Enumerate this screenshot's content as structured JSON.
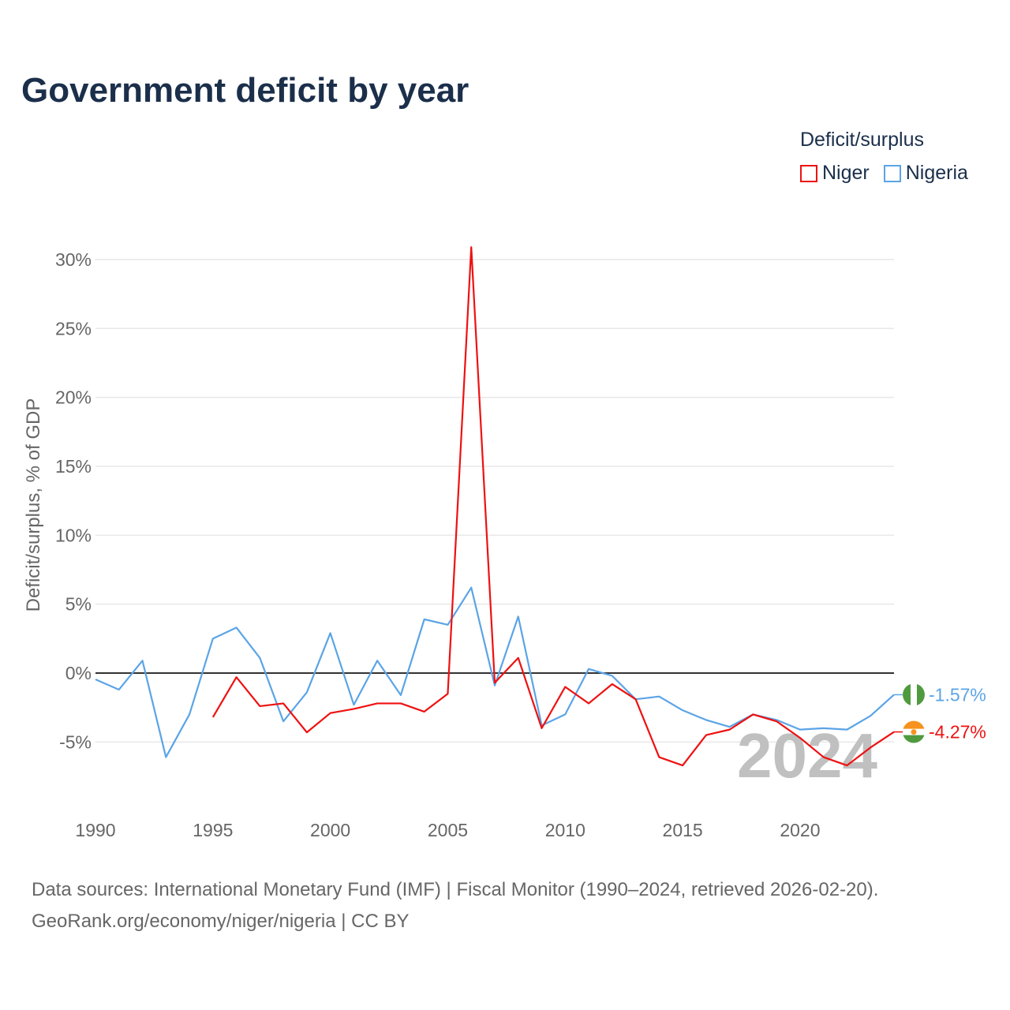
{
  "title": "Government deficit by year",
  "legend": {
    "title": "Deficit/surplus",
    "items": [
      {
        "name": "Niger",
        "color": "#ee1111"
      },
      {
        "name": "Nigeria",
        "color": "#5ba4e6"
      }
    ]
  },
  "source": {
    "line1": "Data sources: International Monetary Fund (IMF) | Fiscal Monitor (1990–2024, retrieved 2026-02-20).",
    "line2": "GeoRank.org/economy/niger/nigeria | CC BY"
  },
  "chart_data": {
    "type": "line",
    "title": "Government deficit by year",
    "ylabel": "Deficit/surplus, % of GDP",
    "xlabel": "",
    "xlim": [
      1990,
      2024
    ],
    "ylim": [
      -10,
      31
    ],
    "xticks": [
      1990,
      1995,
      2000,
      2005,
      2010,
      2015,
      2020
    ],
    "yticks": [
      -5,
      0,
      5,
      10,
      15,
      20,
      25,
      30
    ],
    "ytick_labels": [
      "-5%",
      "0%",
      "5%",
      "10%",
      "15%",
      "20%",
      "25%",
      "30%"
    ],
    "grid": true,
    "current_year_label": "2024",
    "series": [
      {
        "name": "Nigeria",
        "color": "#5ba4e6",
        "end_label": "-1.57%",
        "start": 1990,
        "values": [
          -0.46,
          -1.2,
          0.9,
          -6.1,
          -3.0,
          2.5,
          3.3,
          1.1,
          -3.5,
          -1.4,
          2.9,
          -2.3,
          0.9,
          -1.6,
          3.9,
          3.5,
          6.2,
          -0.9,
          4.1,
          -3.8,
          -3.0,
          0.3,
          -0.2,
          -1.9,
          -1.7,
          -2.7,
          -3.4,
          -3.9,
          -3.0,
          -3.4,
          -4.1,
          -4.0,
          -4.1,
          -3.1,
          -1.57
        ]
      },
      {
        "name": "Niger",
        "color": "#ee1111",
        "end_label": "-4.27%",
        "start": 1995,
        "values": [
          -3.2,
          -0.3,
          -2.4,
          -2.2,
          -4.3,
          -2.9,
          -2.6,
          -2.2,
          -2.2,
          -2.8,
          -1.5,
          30.9,
          -0.7,
          1.1,
          -4.0,
          -1.0,
          -2.2,
          -0.8,
          -1.9,
          -6.1,
          -6.7,
          -4.5,
          -4.1,
          -3.0,
          -3.5,
          -4.7,
          -6.1,
          -6.7,
          -5.4,
          -4.27
        ]
      }
    ]
  }
}
